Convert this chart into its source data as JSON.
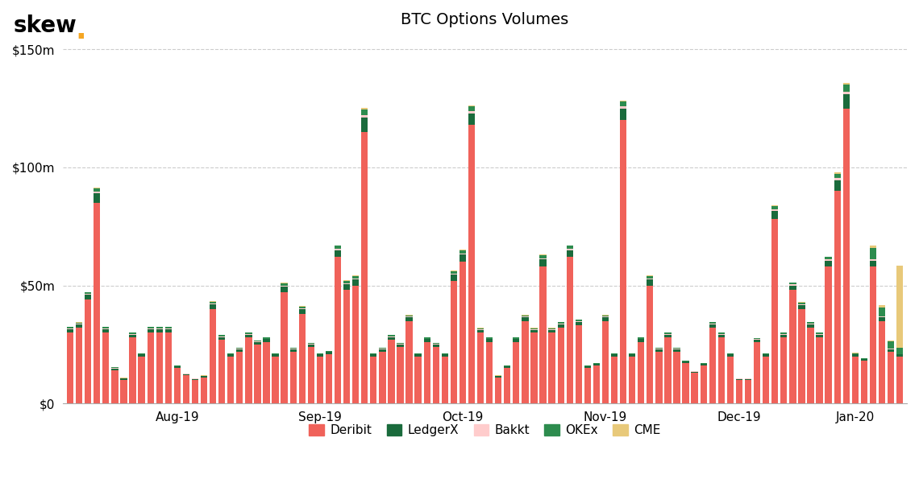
{
  "title": "BTC Options Volumes",
  "skew_dot_color": "#F5A623",
  "background_color": "#ffffff",
  "ylim": [
    0,
    155000000
  ],
  "yticks": [
    0,
    50000000,
    100000000,
    150000000
  ],
  "colors": {
    "Deribit": "#F0625A",
    "LedgerX": "#1A6B3C",
    "Bakkt": "#FFCCCC",
    "OKEx": "#2D8C4E",
    "CME": "#E8C97A"
  },
  "legend_order": [
    "Deribit",
    "LedgerX",
    "Bakkt",
    "OKEx",
    "CME"
  ],
  "xtick_labels": [
    "Aug-19",
    "Sep-19",
    "Oct-19",
    "Nov-19",
    "Dec-19",
    "Jan-20"
  ],
  "xtick_positions": [
    12,
    28,
    44,
    60,
    75,
    88
  ],
  "grid_color": "#cccccc",
  "bar_data": {
    "Deribit": [
      30000000,
      32000000,
      44000000,
      85000000,
      30000000,
      14000000,
      10000000,
      28000000,
      20000000,
      30000000,
      30000000,
      30000000,
      15000000,
      12000000,
      10000000,
      11000000,
      40000000,
      27000000,
      20000000,
      22000000,
      28000000,
      25000000,
      26000000,
      20000000,
      47000000,
      22000000,
      38000000,
      24000000,
      20000000,
      21000000,
      62000000,
      48000000,
      50000000,
      115000000,
      20000000,
      22000000,
      27000000,
      24000000,
      35000000,
      20000000,
      26000000,
      24000000,
      20000000,
      52000000,
      60000000,
      118000000,
      30000000,
      26000000,
      11000000,
      15000000,
      26000000,
      35000000,
      30000000,
      58000000,
      30000000,
      32000000,
      62000000,
      33000000,
      15000000,
      16000000,
      35000000,
      20000000,
      120000000,
      20000000,
      26000000,
      50000000,
      22000000,
      28000000,
      22000000,
      17000000,
      13000000,
      16000000,
      32000000,
      28000000,
      20000000,
      10000000,
      10000000,
      26000000,
      20000000,
      78000000,
      28000000,
      48000000,
      40000000,
      32000000,
      28000000,
      58000000,
      90000000,
      125000000,
      20000000,
      18000000,
      58000000,
      35000000,
      22000000,
      20000000
    ],
    "LedgerX": [
      1500000,
      1500000,
      2000000,
      4000000,
      1500000,
      800000,
      500000,
      1200000,
      800000,
      1500000,
      1500000,
      1500000,
      700000,
      500000,
      400000,
      500000,
      2000000,
      1200000,
      800000,
      1000000,
      1200000,
      1000000,
      1200000,
      800000,
      2500000,
      1000000,
      2000000,
      1000000,
      800000,
      800000,
      3000000,
      2500000,
      2500000,
      6000000,
      800000,
      1000000,
      1200000,
      1000000,
      1500000,
      800000,
      1200000,
      1000000,
      800000,
      2500000,
      3000000,
      5000000,
      1200000,
      1200000,
      500000,
      700000,
      1200000,
      1500000,
      1200000,
      3000000,
      1200000,
      1500000,
      3000000,
      1500000,
      600000,
      700000,
      1500000,
      800000,
      5000000,
      800000,
      1200000,
      2500000,
      1000000,
      1200000,
      1000000,
      700000,
      500000,
      700000,
      1500000,
      1200000,
      800000,
      400000,
      400000,
      1000000,
      800000,
      3500000,
      1200000,
      2000000,
      1800000,
      1500000,
      1200000,
      2500000,
      4500000,
      6000000,
      800000,
      700000,
      2500000,
      1500000,
      1000000,
      800000
    ],
    "Bakkt": [
      300000,
      300000,
      400000,
      600000,
      300000,
      150000,
      100000,
      250000,
      150000,
      300000,
      300000,
      300000,
      150000,
      100000,
      80000,
      100000,
      400000,
      250000,
      150000,
      200000,
      250000,
      200000,
      250000,
      150000,
      500000,
      200000,
      400000,
      200000,
      150000,
      150000,
      600000,
      500000,
      500000,
      1200000,
      150000,
      200000,
      250000,
      200000,
      300000,
      150000,
      250000,
      200000,
      150000,
      500000,
      600000,
      1000000,
      250000,
      250000,
      100000,
      150000,
      250000,
      300000,
      250000,
      600000,
      250000,
      300000,
      600000,
      300000,
      120000,
      150000,
      300000,
      150000,
      1000000,
      150000,
      250000,
      500000,
      200000,
      250000,
      200000,
      150000,
      100000,
      150000,
      300000,
      250000,
      150000,
      80000,
      80000,
      200000,
      150000,
      700000,
      250000,
      400000,
      350000,
      300000,
      250000,
      500000,
      900000,
      1200000,
      150000,
      150000,
      500000,
      300000,
      200000,
      150000
    ],
    "OKEx": [
      500000,
      500000,
      700000,
      1500000,
      500000,
      300000,
      200000,
      500000,
      300000,
      500000,
      600000,
      500000,
      300000,
      200000,
      200000,
      200000,
      700000,
      500000,
      300000,
      400000,
      500000,
      400000,
      500000,
      300000,
      1000000,
      400000,
      700000,
      400000,
      300000,
      300000,
      1200000,
      1000000,
      1000000,
      2500000,
      300000,
      400000,
      500000,
      400000,
      600000,
      300000,
      500000,
      400000,
      300000,
      1000000,
      1200000,
      2000000,
      500000,
      500000,
      200000,
      300000,
      500000,
      600000,
      500000,
      1200000,
      500000,
      600000,
      1200000,
      600000,
      250000,
      300000,
      600000,
      300000,
      2000000,
      300000,
      500000,
      1000000,
      400000,
      500000,
      400000,
      300000,
      200000,
      300000,
      600000,
      500000,
      300000,
      200000,
      200000,
      400000,
      300000,
      1500000,
      500000,
      800000,
      700000,
      600000,
      500000,
      1000000,
      2000000,
      3000000,
      400000,
      300000,
      5000000,
      4000000,
      3000000,
      2500000
    ],
    "CME": [
      100000,
      100000,
      150000,
      300000,
      100000,
      60000,
      40000,
      100000,
      60000,
      100000,
      120000,
      100000,
      60000,
      40000,
      40000,
      40000,
      150000,
      100000,
      60000,
      80000,
      100000,
      80000,
      100000,
      60000,
      200000,
      80000,
      150000,
      80000,
      60000,
      60000,
      250000,
      200000,
      200000,
      500000,
      60000,
      80000,
      100000,
      80000,
      120000,
      60000,
      100000,
      80000,
      60000,
      200000,
      250000,
      400000,
      100000,
      100000,
      40000,
      60000,
      100000,
      120000,
      100000,
      250000,
      100000,
      120000,
      250000,
      120000,
      50000,
      60000,
      120000,
      60000,
      400000,
      60000,
      100000,
      200000,
      80000,
      100000,
      80000,
      60000,
      40000,
      60000,
      120000,
      100000,
      60000,
      40000,
      40000,
      80000,
      60000,
      300000,
      100000,
      150000,
      150000,
      120000,
      100000,
      200000,
      400000,
      600000,
      80000,
      60000,
      1000000,
      800000,
      600000,
      35000000
    ]
  }
}
